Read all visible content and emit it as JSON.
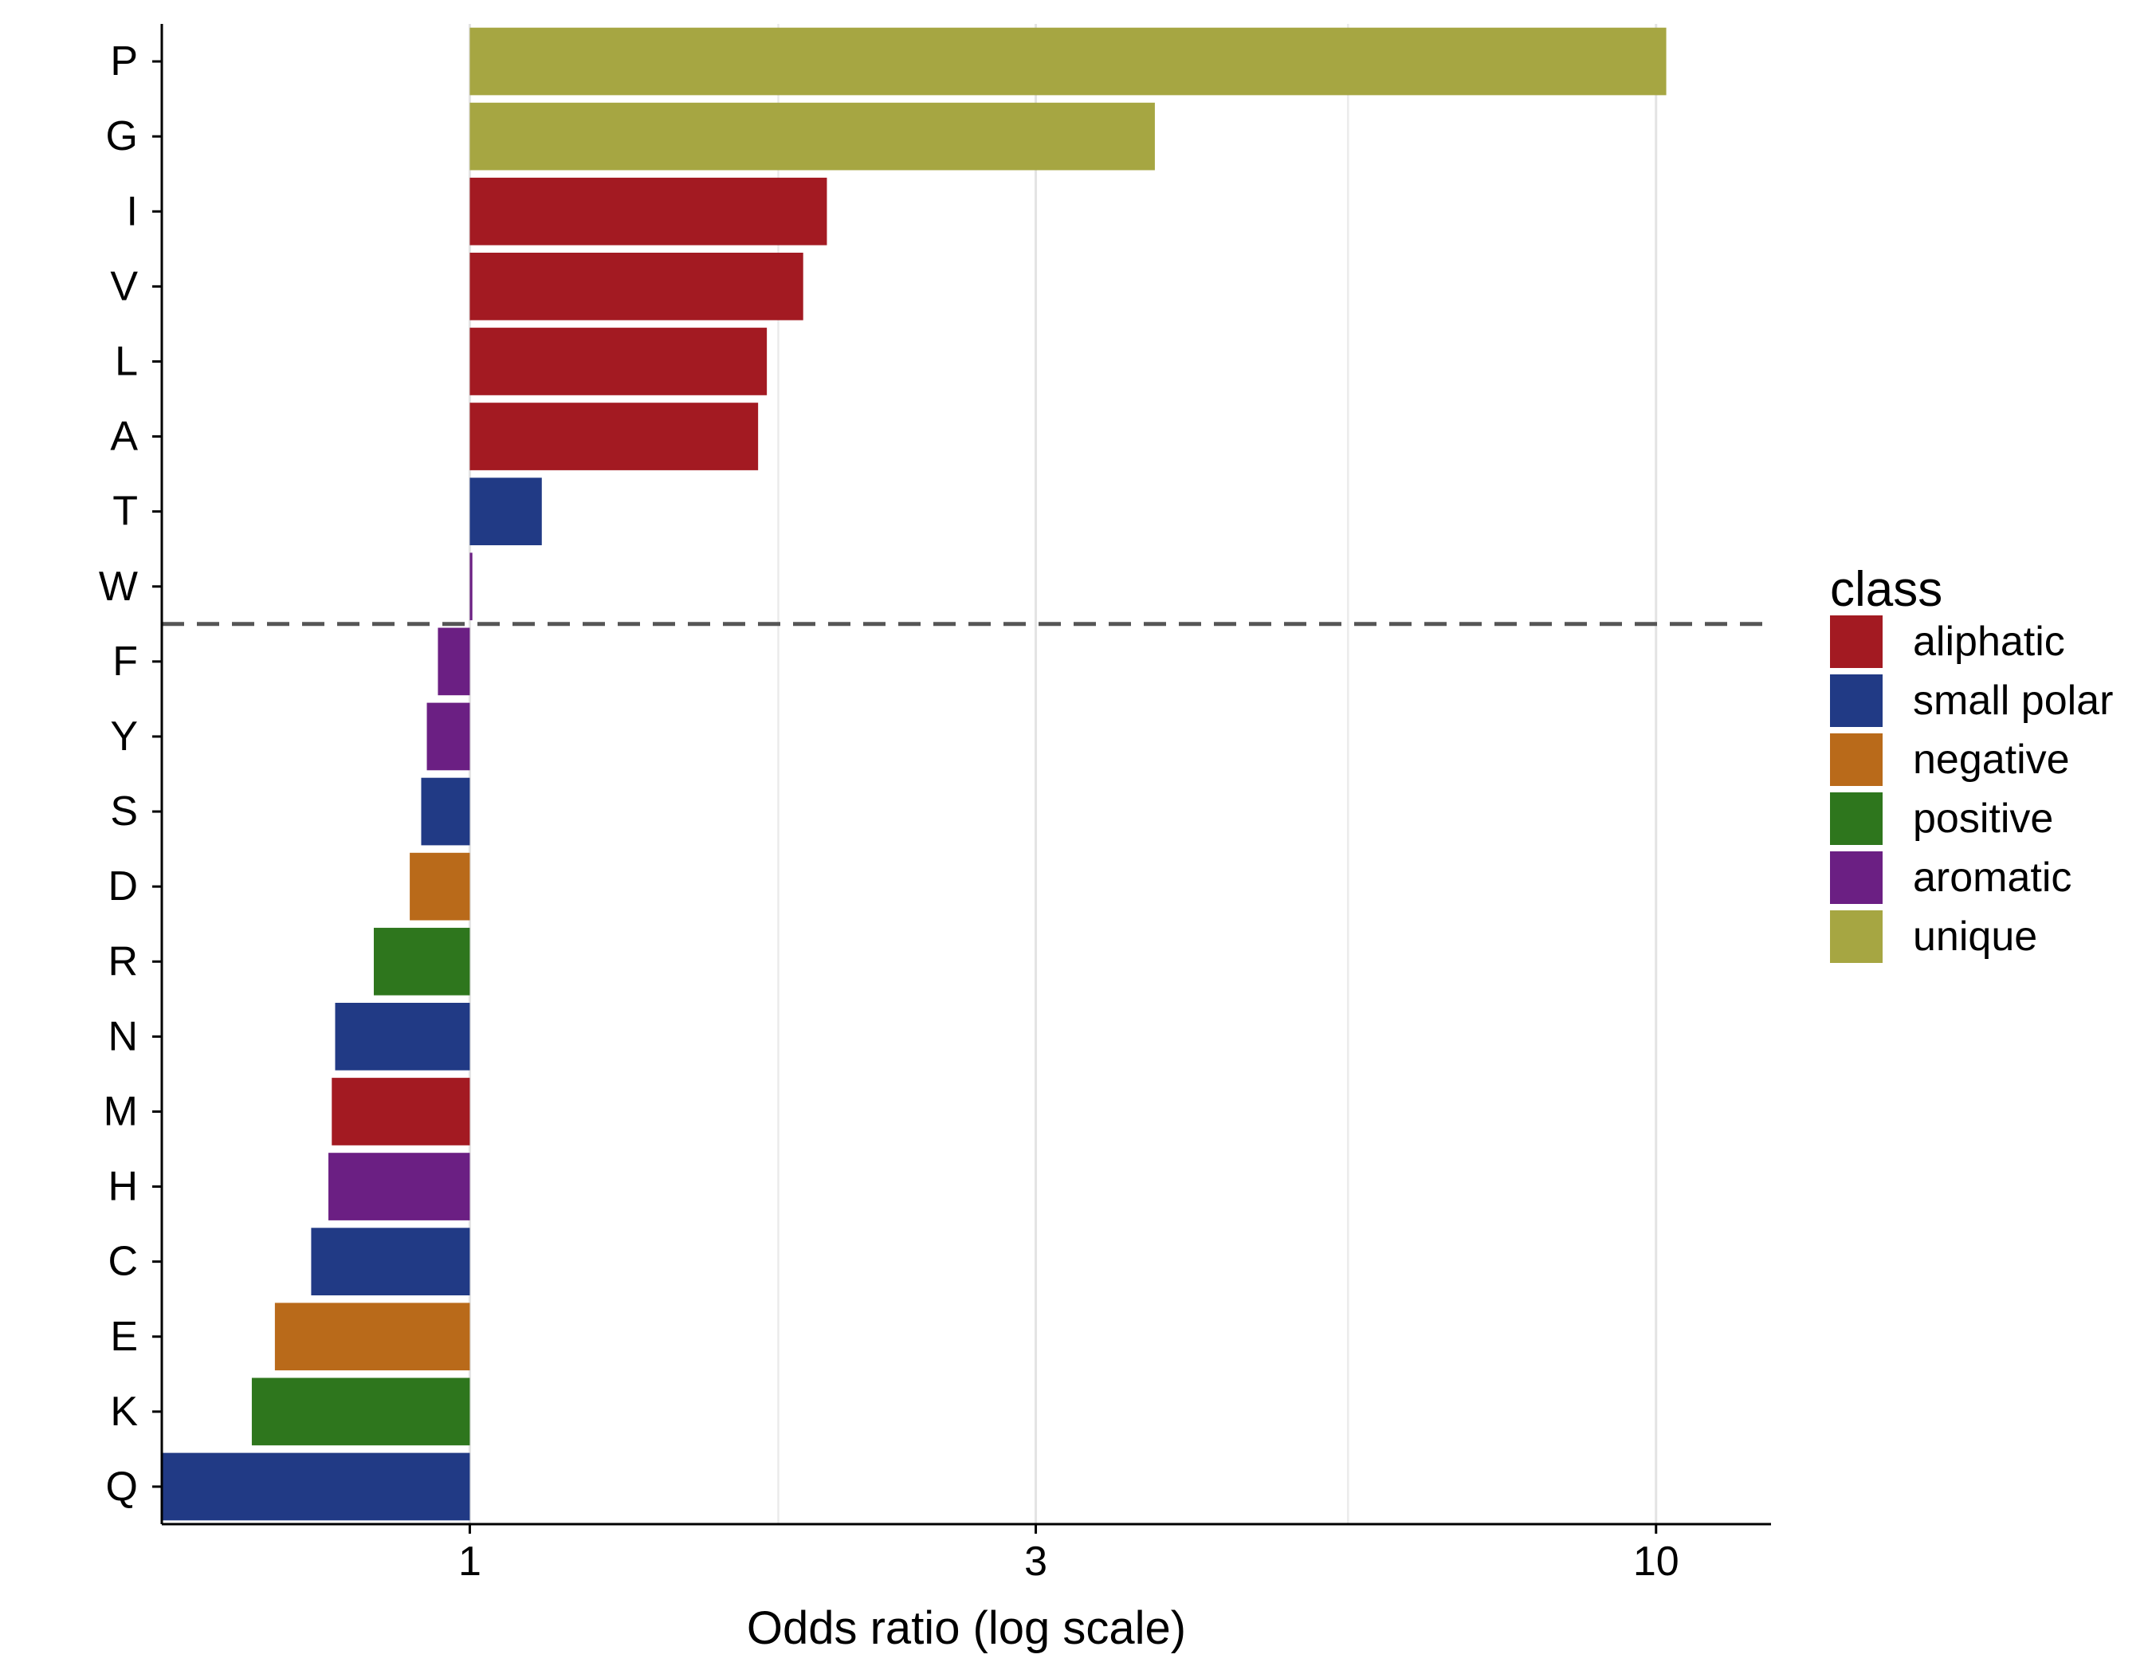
{
  "chart_data": {
    "type": "bar",
    "orientation": "horizontal",
    "xlabel": "Odds ratio (log scale)",
    "ylabel": "",
    "x_scale": "log10",
    "xlim": [
      0.55,
      12.5
    ],
    "baseline": 1,
    "x_ticks": [
      1,
      3,
      10
    ],
    "x_tick_labels": [
      "1",
      "3",
      "10"
    ],
    "minor_gridlines": [
      0.55,
      1.82,
      5.5
    ],
    "grid": "vertical major and minor lines",
    "threshold_line": {
      "style": "dashed",
      "between": [
        "W",
        "F"
      ]
    },
    "categories": [
      "P",
      "G",
      "I",
      "V",
      "L",
      "A",
      "T",
      "W",
      "F",
      "Y",
      "S",
      "D",
      "R",
      "N",
      "M",
      "H",
      "C",
      "E",
      "K",
      "Q"
    ],
    "values": [
      10.2,
      3.78,
      2.0,
      1.91,
      1.78,
      1.75,
      1.15,
      1.005,
      0.94,
      0.92,
      0.91,
      0.89,
      0.83,
      0.77,
      0.765,
      0.76,
      0.735,
      0.685,
      0.655,
      0.55
    ],
    "classes": [
      "unique",
      "unique",
      "aliphatic",
      "aliphatic",
      "aliphatic",
      "aliphatic",
      "small polar",
      "aromatic",
      "aromatic",
      "aromatic",
      "small polar",
      "negative",
      "positive",
      "small polar",
      "aliphatic",
      "aromatic",
      "small polar",
      "negative",
      "positive",
      "small polar"
    ],
    "legend": {
      "title": "class",
      "position": "right",
      "items": [
        {
          "label": "aliphatic",
          "color": "#a31a22"
        },
        {
          "label": "small polar",
          "color": "#213a85"
        },
        {
          "label": "negative",
          "color": "#b96a1a"
        },
        {
          "label": "positive",
          "color": "#2e761d"
        },
        {
          "label": "aromatic",
          "color": "#6b1f83"
        },
        {
          "label": "unique",
          "color": "#a6a642"
        }
      ]
    }
  }
}
